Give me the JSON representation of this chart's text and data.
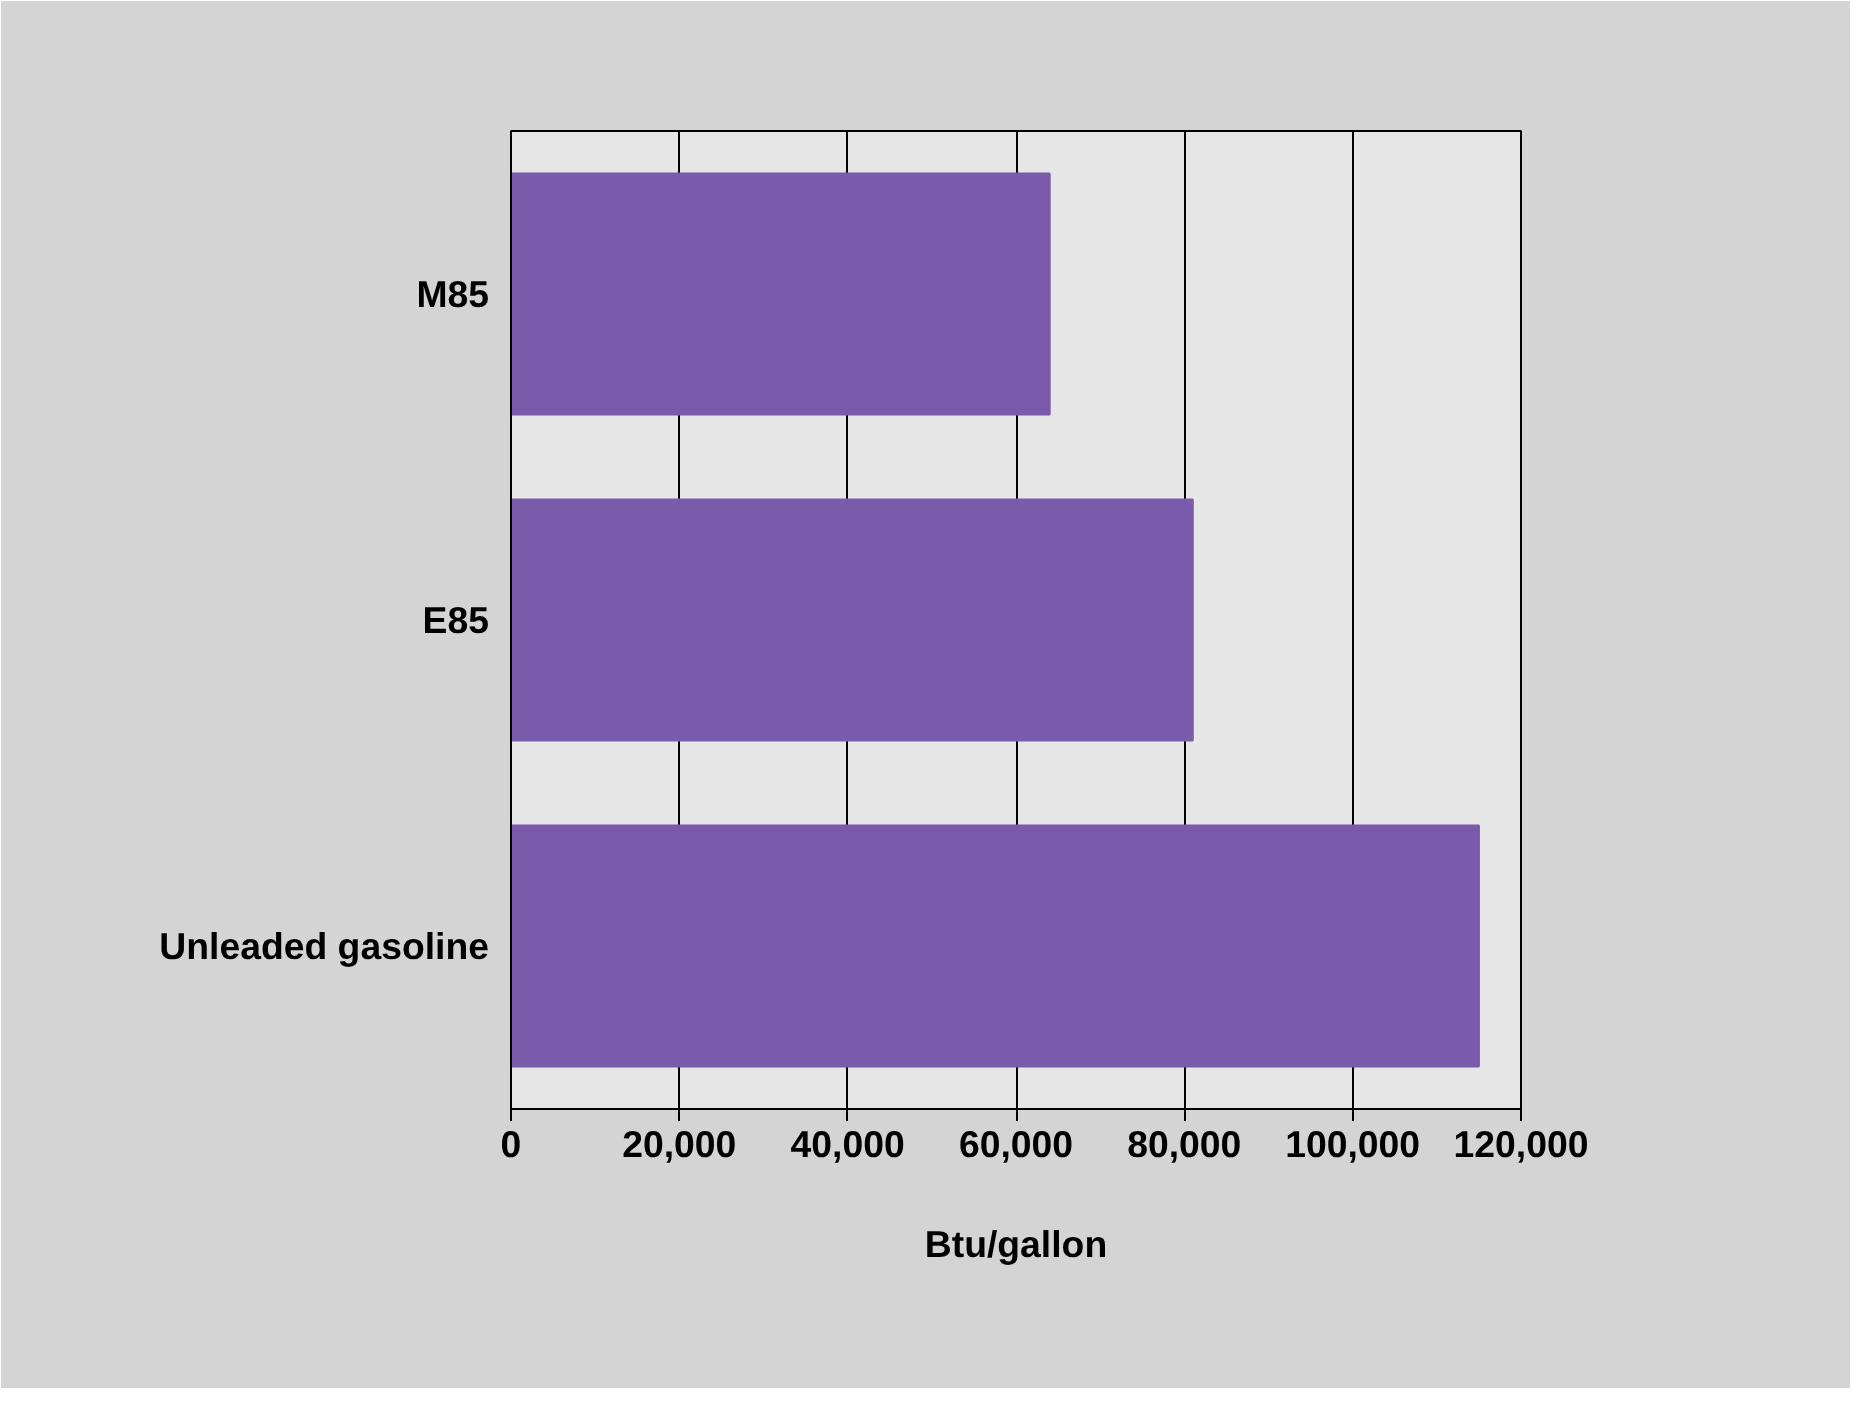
{
  "chart_data": {
    "type": "bar",
    "orientation": "horizontal",
    "categories": [
      "M85",
      "E85",
      "Unleaded gasoline"
    ],
    "values": [
      64000,
      81000,
      115000
    ],
    "color": "#7a5aaa",
    "xlabel": "Btu/gallon",
    "xlim": [
      0,
      120000
    ],
    "xticks": [
      {
        "value": 0,
        "label": "0"
      },
      {
        "value": 20000,
        "label": "20,000"
      },
      {
        "value": 40000,
        "label": "40,000"
      },
      {
        "value": 60000,
        "label": "60,000"
      },
      {
        "value": 80000,
        "label": "80,000"
      },
      {
        "value": 100000,
        "label": "100,000"
      },
      {
        "value": 120000,
        "label": "120,000"
      }
    ],
    "grid": "x"
  }
}
